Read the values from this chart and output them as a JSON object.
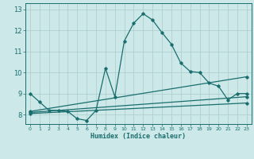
{
  "xlabel": "Humidex (Indice chaleur)",
  "xlim": [
    -0.5,
    23.5
  ],
  "ylim": [
    7.55,
    13.3
  ],
  "yticks": [
    8,
    9,
    10,
    11,
    12,
    13
  ],
  "xticks": [
    0,
    1,
    2,
    3,
    4,
    5,
    6,
    7,
    8,
    9,
    10,
    11,
    12,
    13,
    14,
    15,
    16,
    17,
    18,
    19,
    20,
    21,
    22,
    23
  ],
  "bg_color": "#cce8e8",
  "grid_color": "#aacccc",
  "line_color": "#1a6e6e",
  "line1_x": [
    0,
    1,
    2,
    3,
    4,
    5,
    6,
    7,
    8,
    9,
    10,
    11,
    12,
    13,
    14,
    15,
    16,
    17,
    18,
    19,
    20,
    21,
    22,
    23
  ],
  "line1_y": [
    9.0,
    8.6,
    8.2,
    8.2,
    8.15,
    7.8,
    7.72,
    8.2,
    10.2,
    8.85,
    11.5,
    12.35,
    12.8,
    12.5,
    11.9,
    11.35,
    10.45,
    10.05,
    10.0,
    9.5,
    9.35,
    8.7,
    9.0,
    9.0
  ],
  "line2_x": [
    0,
    23
  ],
  "line2_y": [
    8.15,
    9.8
  ],
  "line3_x": [
    0,
    23
  ],
  "line3_y": [
    8.1,
    8.85
  ],
  "line4_x": [
    0,
    23
  ],
  "line4_y": [
    8.05,
    8.55
  ]
}
